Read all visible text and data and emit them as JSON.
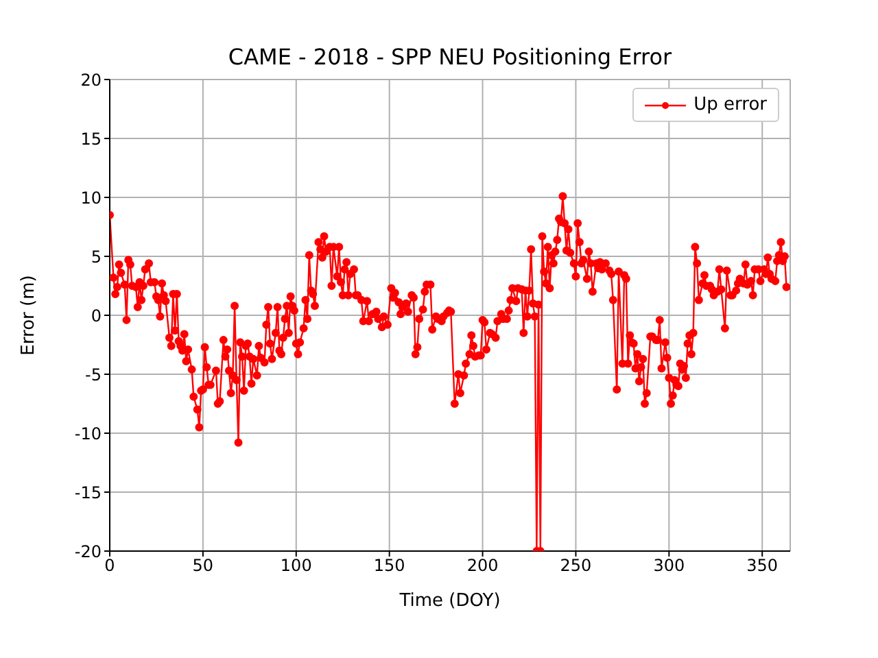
{
  "chart_data": {
    "type": "line",
    "title": "CAME - 2018 - SPP NEU Positioning Error",
    "xlabel": "Time (DOY)",
    "ylabel": "Error (m)",
    "xlim": [
      0,
      365
    ],
    "xticks": [
      0,
      50,
      100,
      150,
      200,
      250,
      300,
      350
    ],
    "ylim": [
      -20,
      20
    ],
    "yticks": [
      -20,
      -15,
      -10,
      -5,
      0,
      5,
      10,
      15,
      20
    ],
    "grid": true,
    "legend": "top right",
    "marker": "circle",
    "line_style": "solid",
    "series": [
      {
        "name": "Up error",
        "color": "#ff0000",
        "x": [
          0,
          2,
          3,
          4,
          5,
          6,
          8,
          9,
          10,
          11,
          12,
          14,
          15,
          16,
          17,
          18,
          19,
          21,
          22,
          24,
          25,
          26,
          27,
          28,
          29,
          30,
          32,
          33,
          34,
          35,
          36,
          37,
          38,
          39,
          40,
          41,
          42,
          44,
          45,
          47,
          48,
          49,
          50,
          51,
          52,
          53,
          54,
          57,
          58,
          59,
          61,
          62,
          63,
          64,
          65,
          66,
          67,
          68,
          69,
          70,
          71,
          72,
          73,
          74,
          75,
          76,
          77,
          79,
          80,
          81,
          83,
          84,
          85,
          86,
          87,
          89,
          90,
          91,
          92,
          93,
          94,
          95,
          96,
          97,
          98,
          99,
          100,
          101,
          102,
          104,
          105,
          106,
          107,
          108,
          109,
          110,
          112,
          113,
          114,
          115,
          116,
          118,
          119,
          120,
          122,
          123,
          124,
          125,
          126,
          127,
          128,
          129,
          131,
          132,
          133,
          135,
          136,
          138,
          139,
          141,
          143,
          144,
          146,
          147,
          149,
          151,
          152,
          153,
          155,
          156,
          157,
          159,
          160,
          162,
          163,
          164,
          165,
          166,
          168,
          169,
          170,
          172,
          173,
          175,
          176,
          178,
          179,
          181,
          182,
          183,
          185,
          187,
          188,
          190,
          191,
          193,
          194,
          195,
          196,
          198,
          199,
          200,
          201,
          202,
          204,
          205,
          207,
          208,
          210,
          211,
          213,
          214,
          215,
          216,
          218,
          219,
          221,
          222,
          223,
          224,
          225,
          226,
          227,
          228,
          229,
          230,
          231,
          232,
          233,
          234,
          235,
          236,
          237,
          238,
          239,
          240,
          241,
          242,
          243,
          244,
          245,
          246,
          247,
          249,
          250,
          251,
          252,
          253,
          254,
          256,
          257,
          258,
          259,
          261,
          262,
          263,
          264,
          266,
          268,
          269,
          270,
          272,
          273,
          275,
          276,
          277,
          278,
          279,
          280,
          281,
          282,
          283,
          284,
          285,
          286,
          287,
          288,
          290,
          291,
          293,
          294,
          295,
          296,
          298,
          299,
          300,
          301,
          302,
          303,
          304,
          305,
          306,
          307,
          308,
          309,
          310,
          311,
          312,
          313,
          314,
          315,
          316,
          318,
          319,
          320,
          322,
          323,
          324,
          326,
          327,
          328,
          330,
          331,
          333,
          334,
          336,
          337,
          338,
          340,
          341,
          342,
          344,
          345,
          346,
          348,
          349,
          351,
          352,
          353,
          354,
          355,
          357,
          358,
          359,
          360,
          361,
          362,
          363
        ],
        "values": [
          8.5,
          3.2,
          1.8,
          2.4,
          4.3,
          3.6,
          2.6,
          -0.4,
          4.7,
          4.3,
          2.5,
          2.4,
          0.7,
          2.8,
          1.3,
          2.5,
          3.9,
          4.4,
          2.8,
          2.8,
          1.6,
          1.3,
          -0.1,
          2.7,
          1.7,
          1.2,
          -1.9,
          -2.6,
          1.8,
          -1.3,
          1.8,
          -2.2,
          -2.6,
          -3.0,
          -1.6,
          -3.9,
          -2.9,
          -4.6,
          -6.9,
          -8.0,
          -9.5,
          -6.4,
          -6.3,
          -2.7,
          -4.4,
          -5.9,
          -5.9,
          -4.7,
          -7.5,
          -7.3,
          -2.1,
          -3.5,
          -2.9,
          -4.7,
          -6.6,
          -5.1,
          0.8,
          -5.5,
          -10.8,
          -2.3,
          -3.5,
          -6.4,
          -2.6,
          -2.4,
          -3.5,
          -5.8,
          -3.7,
          -5.1,
          -2.6,
          -3.6,
          -4.0,
          -0.8,
          0.7,
          -2.4,
          -3.7,
          -1.5,
          0.7,
          -3.0,
          -3.3,
          -1.9,
          -0.3,
          0.8,
          -1.5,
          1.6,
          0.8,
          0.4,
          -2.4,
          -3.3,
          -2.3,
          -1.1,
          1.3,
          -0.3,
          5.1,
          2.1,
          1.8,
          0.8,
          6.2,
          5.6,
          4.9,
          6.7,
          5.4,
          5.8,
          2.5,
          5.8,
          3.3,
          5.8,
          2.8,
          1.7,
          3.9,
          4.5,
          1.7,
          3.5,
          3.9,
          1.7,
          1.7,
          1.3,
          -0.5,
          1.2,
          -0.5,
          0.1,
          0.3,
          -0.3,
          -1.0,
          -0.1,
          -0.8,
          2.3,
          1.5,
          1.9,
          1.1,
          0.1,
          0.7,
          1.0,
          0.3,
          1.7,
          1.5,
          -3.3,
          -2.7,
          -0.3,
          0.5,
          2.0,
          2.6,
          2.6,
          -1.2,
          -0.1,
          -0.3,
          -0.5,
          -0.1,
          0.2,
          0.4,
          0.3,
          -7.5,
          -5.0,
          -6.6,
          -5.1,
          -4.1,
          -3.3,
          -1.7,
          -2.6,
          -3.5,
          -3.4,
          -3.4,
          -0.4,
          -0.6,
          -2.9,
          -1.5,
          -1.6,
          -1.9,
          -0.5,
          0.1,
          -0.3,
          -0.3,
          0.4,
          1.3,
          2.3,
          1.2,
          2.3,
          2.2,
          -1.5,
          2.1,
          -0.1,
          2.1,
          5.6,
          1.0,
          -0.1,
          -20,
          0.9,
          -20,
          6.7,
          3.7,
          2.7,
          5.8,
          2.3,
          5.1,
          4.4,
          5.4,
          6.4,
          8.2,
          7.9,
          10.1,
          7.8,
          5.5,
          7.3,
          5.3,
          4.4,
          3.3,
          7.8,
          6.2,
          4.4,
          4.7,
          3.1,
          5.4,
          4.4,
          2.0,
          4.4,
          4.0,
          4.5,
          3.9,
          4.4,
          3.8,
          3.5,
          1.3,
          -6.3,
          3.7,
          -4.1,
          3.4,
          3.1,
          -4.1,
          -1.7,
          -2.3,
          -2.4,
          -4.5,
          -3.3,
          -5.6,
          -4.4,
          -3.7,
          -7.5,
          -6.6,
          -1.8,
          -1.8,
          -2.1,
          -2.1,
          -0.4,
          -4.5,
          -2.3,
          -3.6,
          -5.3,
          -7.5,
          -6.8,
          -5.5,
          -5.9,
          -6.0,
          -4.1,
          -4.6,
          -4.3,
          -5.3,
          -2.4,
          -1.7,
          -3.3,
          -1.5,
          5.8,
          4.4,
          1.3,
          2.7,
          3.4,
          2.5,
          2.5,
          2.2,
          1.7,
          2.0,
          3.9,
          2.2,
          -1.1,
          3.8,
          1.7,
          1.7,
          2.1,
          2.7,
          3.1,
          2.7,
          4.3,
          2.6,
          2.9,
          1.7,
          3.9,
          3.9,
          2.9,
          3.9,
          3.5,
          4.9,
          3.5,
          3.1,
          2.9,
          4.6,
          5.1,
          6.2,
          4.6,
          5.0,
          2.4
        ]
      }
    ]
  }
}
